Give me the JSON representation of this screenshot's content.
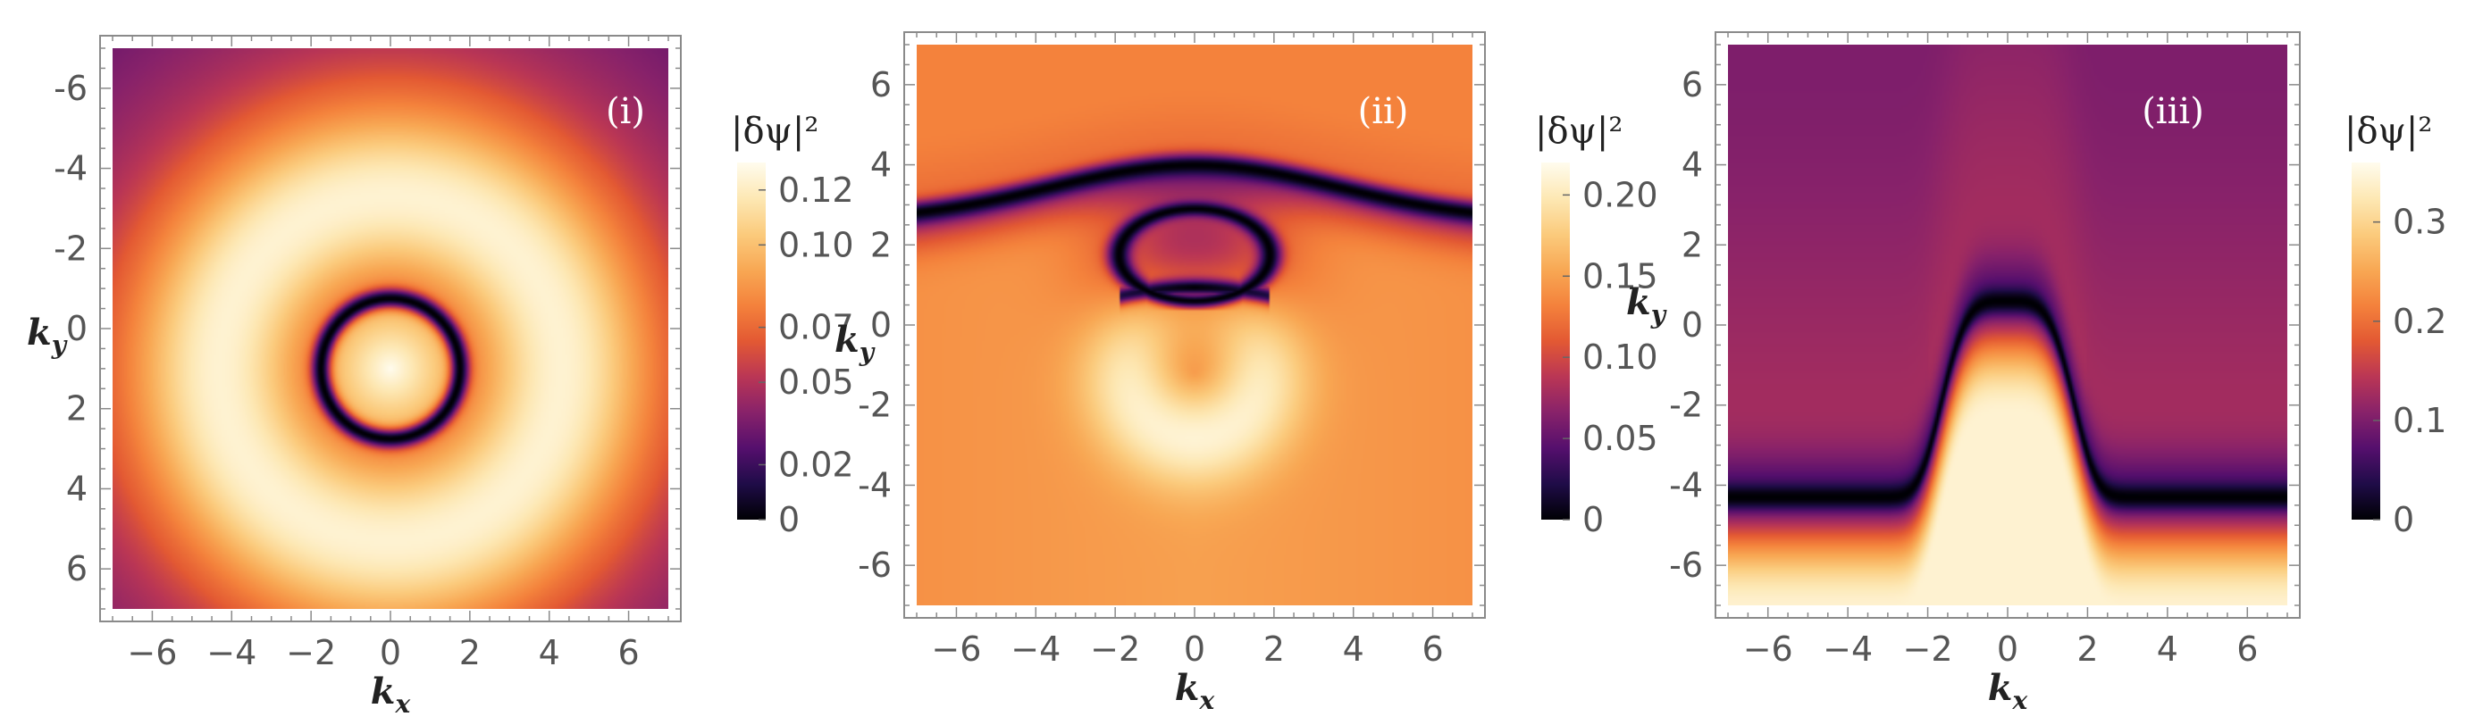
{
  "chart_data": [
    {
      "type": "heatmap",
      "panel_label": "(i)",
      "xlabel": "k_x",
      "ylabel": "k_y",
      "xlim": [
        -7,
        7
      ],
      "ylim": [
        -7,
        7
      ],
      "x_ticks": [
        -6,
        -4,
        -2,
        0,
        2,
        4,
        6
      ],
      "y_ticks": [
        -6,
        -4,
        -2,
        0,
        2,
        4,
        6
      ],
      "x_tick_labels": [
        "−6",
        "−4",
        "−2",
        "0",
        "2",
        "4",
        "6"
      ],
      "y_tick_labels": [
        "-6",
        "-4",
        "-2",
        "0",
        "2",
        "4",
        "6"
      ],
      "colorbar": {
        "title": "|δψ|²",
        "range": [
          0,
          0.13
        ],
        "ticks": [
          0,
          0.02,
          0.05,
          0.07,
          0.1,
          0.12
        ],
        "tick_labels": [
          "0",
          "0.02",
          "0.05",
          "0.07",
          "0.10",
          "0.12"
        ]
      },
      "features": {
        "zero_contour": "circle centred at (0, -1), radius ≈ 1.7",
        "maximum": "at (0, -1.2), ≈ 0.12",
        "secondary_ring": "bright ring radius ≈ 4.5 around (0, -1)"
      }
    },
    {
      "type": "heatmap",
      "panel_label": "(ii)",
      "xlabel": "k_x",
      "ylabel": "k_y",
      "xlim": [
        -7,
        7
      ],
      "ylim": [
        -7,
        7
      ],
      "x_ticks": [
        -6,
        -4,
        -2,
        0,
        2,
        4,
        6
      ],
      "y_ticks": [
        -6,
        -4,
        -2,
        0,
        2,
        4,
        6
      ],
      "x_tick_labels": [
        "−6",
        "−4",
        "−2",
        "0",
        "2",
        "4",
        "6"
      ],
      "y_tick_labels": [
        "6",
        "4",
        "2",
        "0",
        "-2",
        "-4",
        "-6"
      ],
      "colorbar": {
        "title": "|δψ|²",
        "range": [
          0,
          0.22
        ],
        "ticks": [
          0,
          0.05,
          0.1,
          0.15,
          0.2
        ],
        "tick_labels": [
          "0",
          "0.05",
          "0.10",
          "0.15",
          "0.20"
        ]
      },
      "features": {
        "zero_contour_arc": "arc from (-7, 2.6) through (0, 4.0) to (7, 2.6)",
        "zero_contour_loop": "D-shaped loop spanning x -2..2, y 0.7..2.9",
        "maximum": "below the loop near (0, -2.3), ≈ 0.21"
      }
    },
    {
      "type": "heatmap",
      "panel_label": "(iii)",
      "xlabel": "k_x",
      "ylabel": "k_y",
      "xlim": [
        -7,
        7
      ],
      "ylim": [
        -7,
        7
      ],
      "x_ticks": [
        -6,
        -4,
        -2,
        0,
        2,
        4,
        6
      ],
      "y_ticks": [
        -6,
        -4,
        -2,
        0,
        2,
        4,
        6
      ],
      "x_tick_labels": [
        "−6",
        "−4",
        "−2",
        "0",
        "2",
        "4",
        "6"
      ],
      "y_tick_labels": [
        "6",
        "4",
        "2",
        "0",
        "-2",
        "-4",
        "-6"
      ],
      "colorbar": {
        "title": "|δψ|²",
        "range": [
          0,
          0.36
        ],
        "ticks": [
          0,
          0.1,
          0.2,
          0.3
        ],
        "tick_labels": [
          "0",
          "0.1",
          "0.2",
          "0.3"
        ]
      },
      "features": {
        "zero_contour": "bump curve from (-7, -4.3) over (0, 0.6) to (7, -4.3)",
        "maximum": "along the bottom edge y ≈ -7, ≈ 0.34"
      }
    }
  ]
}
